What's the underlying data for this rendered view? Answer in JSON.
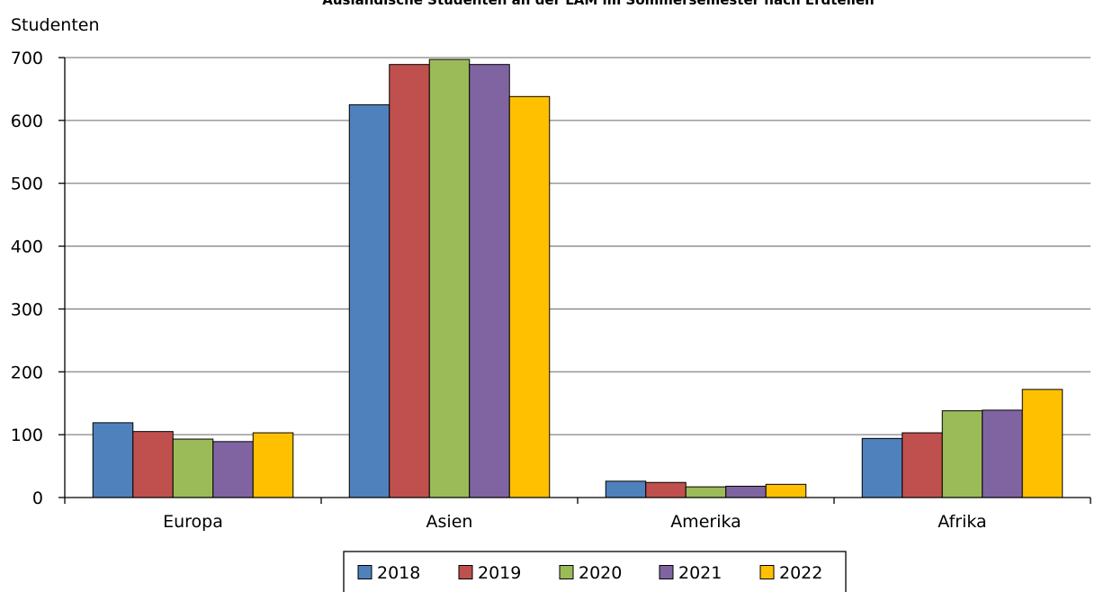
{
  "chart_data": {
    "type": "bar",
    "title": "Ausländische Studenten an der LAM im Sommersemester nach Erdteilen",
    "ylabel": "Studenten",
    "xlabel": "",
    "categories": [
      "Europa",
      "Asien",
      "Amerika",
      "Afrika"
    ],
    "series": [
      {
        "name": "2018",
        "color": "#4f81bd",
        "values": [
          119,
          625,
          26,
          94
        ]
      },
      {
        "name": "2019",
        "color": "#c0504d",
        "values": [
          105,
          689,
          24,
          103
        ]
      },
      {
        "name": "2020",
        "color": "#9bbb59",
        "values": [
          93,
          697,
          17,
          138
        ]
      },
      {
        "name": "2021",
        "color": "#8064a2",
        "values": [
          89,
          689,
          18,
          139
        ]
      },
      {
        "name": "2022",
        "color": "#ffc000",
        "values": [
          103,
          638,
          21,
          172
        ]
      }
    ],
    "ylim": [
      0,
      700
    ],
    "yticks": [
      "0",
      "100",
      "200",
      "300",
      "400",
      "500",
      "600",
      "700"
    ],
    "grid": true,
    "legend_position": "bottom"
  }
}
